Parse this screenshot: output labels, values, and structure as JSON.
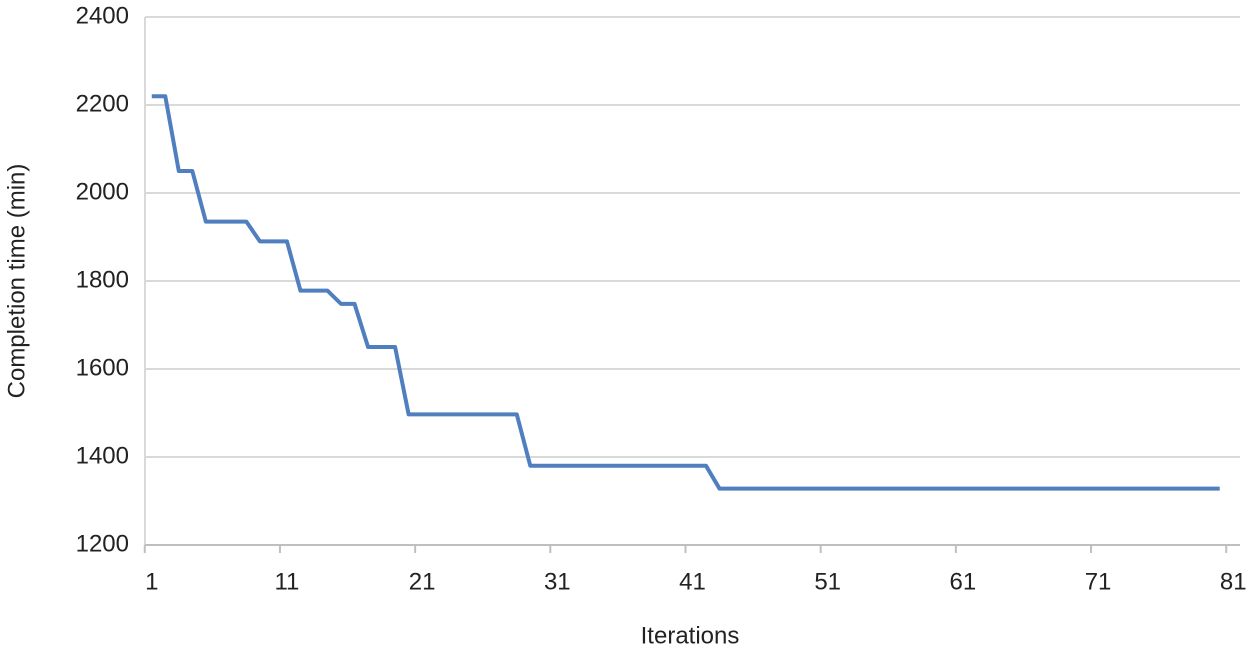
{
  "chart_data": {
    "type": "line",
    "x_label": "Iterations",
    "y_label": "Completion time (min)",
    "x": [
      1,
      2,
      3,
      4,
      5,
      6,
      7,
      8,
      9,
      10,
      11,
      12,
      13,
      14,
      15,
      16,
      17,
      18,
      19,
      20,
      21,
      22,
      23,
      24,
      25,
      26,
      27,
      28,
      29,
      30,
      31,
      32,
      33,
      34,
      35,
      36,
      37,
      38,
      39,
      40,
      41,
      42,
      43,
      44,
      45,
      46,
      47,
      48,
      49,
      50,
      51,
      52,
      53,
      54,
      55,
      56,
      57,
      58,
      59,
      60,
      61,
      62,
      63,
      64,
      65,
      66,
      67,
      68,
      69,
      70,
      71,
      72,
      73,
      74,
      75,
      76,
      77,
      78,
      79,
      80
    ],
    "series": [
      {
        "color": "#4f7fbf",
        "values": [
          2220,
          2220,
          2050,
          2050,
          1935,
          1935,
          1935,
          1935,
          1890,
          1890,
          1890,
          1778,
          1778,
          1778,
          1748,
          1748,
          1650,
          1650,
          1650,
          1497,
          1497,
          1497,
          1497,
          1497,
          1497,
          1497,
          1497,
          1497,
          1380,
          1380,
          1380,
          1380,
          1380,
          1380,
          1380,
          1380,
          1380,
          1380,
          1380,
          1380,
          1380,
          1380,
          1328,
          1328,
          1328,
          1328,
          1328,
          1328,
          1328,
          1328,
          1328,
          1328,
          1328,
          1328,
          1328,
          1328,
          1328,
          1328,
          1328,
          1328,
          1328,
          1328,
          1328,
          1328,
          1328,
          1328,
          1328,
          1328,
          1328,
          1328,
          1328,
          1328,
          1328,
          1328,
          1328,
          1328,
          1328,
          1328,
          1328,
          1328
        ]
      }
    ],
    "xlim": [
      0.5,
      81.5
    ],
    "xticks": [
      1,
      11,
      21,
      31,
      41,
      51,
      61,
      71,
      81
    ],
    "ylim": [
      1200,
      2400
    ],
    "yticks": [
      1200,
      1400,
      1600,
      1800,
      2000,
      2200,
      2400
    ],
    "grid": true
  }
}
